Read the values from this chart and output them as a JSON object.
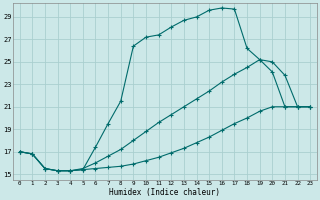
{
  "xlabel": "Humidex (Indice chaleur)",
  "bg_color": "#cce8e8",
  "grid_color": "#aacfcf",
  "line_color": "#006b6b",
  "xlim": [
    -0.5,
    23.5
  ],
  "ylim": [
    14.5,
    30.2
  ],
  "yticks": [
    15,
    17,
    19,
    21,
    23,
    25,
    27,
    29
  ],
  "xticks": [
    0,
    1,
    2,
    3,
    4,
    5,
    6,
    7,
    8,
    9,
    10,
    11,
    12,
    13,
    14,
    15,
    16,
    17,
    18,
    19,
    20,
    21,
    22,
    23
  ],
  "line1_x": [
    0,
    1,
    2,
    3,
    4,
    5,
    6,
    7,
    8,
    9,
    10,
    11,
    12,
    13,
    14,
    15,
    16,
    17,
    18,
    19,
    20,
    21,
    22,
    23
  ],
  "line1_y": [
    17.0,
    16.8,
    15.5,
    15.3,
    15.3,
    15.4,
    17.4,
    19.5,
    21.5,
    26.4,
    27.2,
    27.4,
    28.1,
    28.7,
    29.0,
    29.6,
    29.8,
    29.7,
    26.2,
    25.2,
    24.1,
    21.0,
    21.0,
    21.0
  ],
  "line2_x": [
    0,
    1,
    2,
    3,
    4,
    5,
    6,
    7,
    8,
    9,
    10,
    11,
    12,
    13,
    14,
    15,
    16,
    17,
    18,
    19,
    20,
    21,
    22,
    23
  ],
  "line2_y": [
    17.0,
    16.8,
    15.5,
    15.3,
    15.3,
    15.4,
    15.5,
    15.6,
    15.7,
    15.9,
    16.2,
    16.5,
    16.9,
    17.3,
    17.8,
    18.3,
    18.9,
    19.5,
    20.0,
    20.6,
    21.0,
    21.0,
    21.0,
    21.0
  ],
  "line3_x": [
    0,
    1,
    2,
    3,
    4,
    5,
    6,
    7,
    8,
    9,
    10,
    11,
    12,
    13,
    14,
    15,
    16,
    17,
    18,
    19,
    20,
    21,
    22,
    23
  ],
  "line3_y": [
    17.0,
    16.8,
    15.5,
    15.3,
    15.3,
    15.5,
    16.0,
    16.6,
    17.2,
    18.0,
    18.8,
    19.6,
    20.3,
    21.0,
    21.7,
    22.4,
    23.2,
    23.9,
    24.5,
    25.2,
    25.0,
    23.8,
    21.0,
    21.0
  ]
}
